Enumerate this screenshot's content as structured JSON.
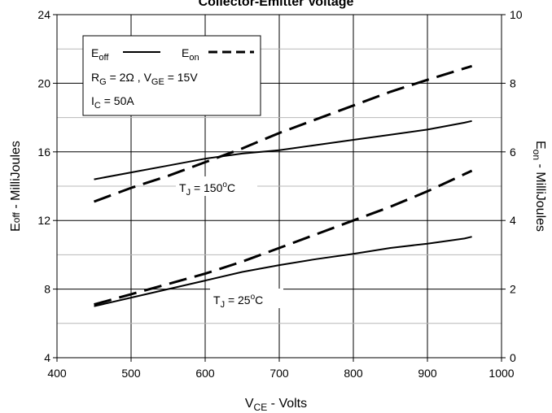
{
  "chart_data": {
    "type": "line",
    "title": "Collector-Emitter Voltage",
    "xlabel": {
      "main": "V",
      "sub": "CE",
      "rest": " - Volts"
    },
    "ylabel_left": {
      "main": "E",
      "sub": "off",
      "rest": " - MilliJoules"
    },
    "ylabel_right": {
      "main": "E",
      "sub": "on",
      "rest": " - MilliJoules"
    },
    "xlim": [
      400,
      1000
    ],
    "ylim_left": [
      4,
      24
    ],
    "ylim_right": [
      0,
      10
    ],
    "xticks": [
      "400",
      "500",
      "600",
      "700",
      "800",
      "900",
      "1000"
    ],
    "yticks_left": [
      "4",
      "8",
      "12",
      "16",
      "20",
      "24"
    ],
    "yticks_right": [
      "0",
      "2",
      "4",
      "6",
      "8",
      "10"
    ],
    "grid": true,
    "legend": {
      "placement": "top-left",
      "eoff": {
        "main": "E",
        "sub": "off"
      },
      "eon": {
        "main": "E",
        "sub": "on"
      },
      "cond_rg": {
        "main": "R",
        "sub": "G",
        "rest": " = 2Ω ,  V"
      },
      "cond_vge": {
        "sub": "GE",
        "rest": " = 15V"
      },
      "cond_ic": {
        "main": "I",
        "sub": "C",
        "rest": " = 50A"
      }
    },
    "annotations": {
      "tj150": {
        "main": "T",
        "sub": "J",
        "mid": " = 150",
        "sup": "o",
        "rest": "C"
      },
      "tj25": {
        "main": "T",
        "sub": "J",
        "mid": " = 25",
        "sup": "o",
        "rest": "C"
      }
    },
    "series": [
      {
        "name": "Eoff",
        "axis": "left",
        "style": "solid",
        "condition": "TJ = 150°C",
        "x": [
          450,
          500,
          550,
          600,
          650,
          700,
          750,
          800,
          850,
          900,
          950,
          960
        ],
        "y": [
          14.4,
          14.8,
          15.2,
          15.6,
          15.9,
          16.1,
          16.4,
          16.7,
          17.0,
          17.3,
          17.7,
          17.8
        ]
      },
      {
        "name": "Eon",
        "axis": "right",
        "style": "dashed",
        "condition": "TJ = 150°C",
        "x": [
          450,
          500,
          550,
          600,
          650,
          700,
          750,
          800,
          850,
          900,
          960
        ],
        "y": [
          4.55,
          4.95,
          5.3,
          5.7,
          6.1,
          6.55,
          6.95,
          7.35,
          7.75,
          8.1,
          8.5
        ]
      },
      {
        "name": "Eoff",
        "axis": "left",
        "style": "solid",
        "condition": "TJ = 25°C",
        "x": [
          450,
          500,
          550,
          600,
          650,
          700,
          750,
          800,
          850,
          900,
          950,
          960
        ],
        "y": [
          7.0,
          7.5,
          8.0,
          8.5,
          9.0,
          9.4,
          9.75,
          10.05,
          10.4,
          10.65,
          10.95,
          11.05
        ]
      },
      {
        "name": "Eon",
        "axis": "right",
        "style": "dashed",
        "condition": "TJ = 25°C",
        "x": [
          450,
          500,
          550,
          600,
          650,
          700,
          750,
          800,
          850,
          900,
          960
        ],
        "y": [
          1.55,
          1.85,
          2.15,
          2.45,
          2.8,
          3.2,
          3.6,
          4.0,
          4.4,
          4.85,
          5.45
        ]
      }
    ]
  }
}
